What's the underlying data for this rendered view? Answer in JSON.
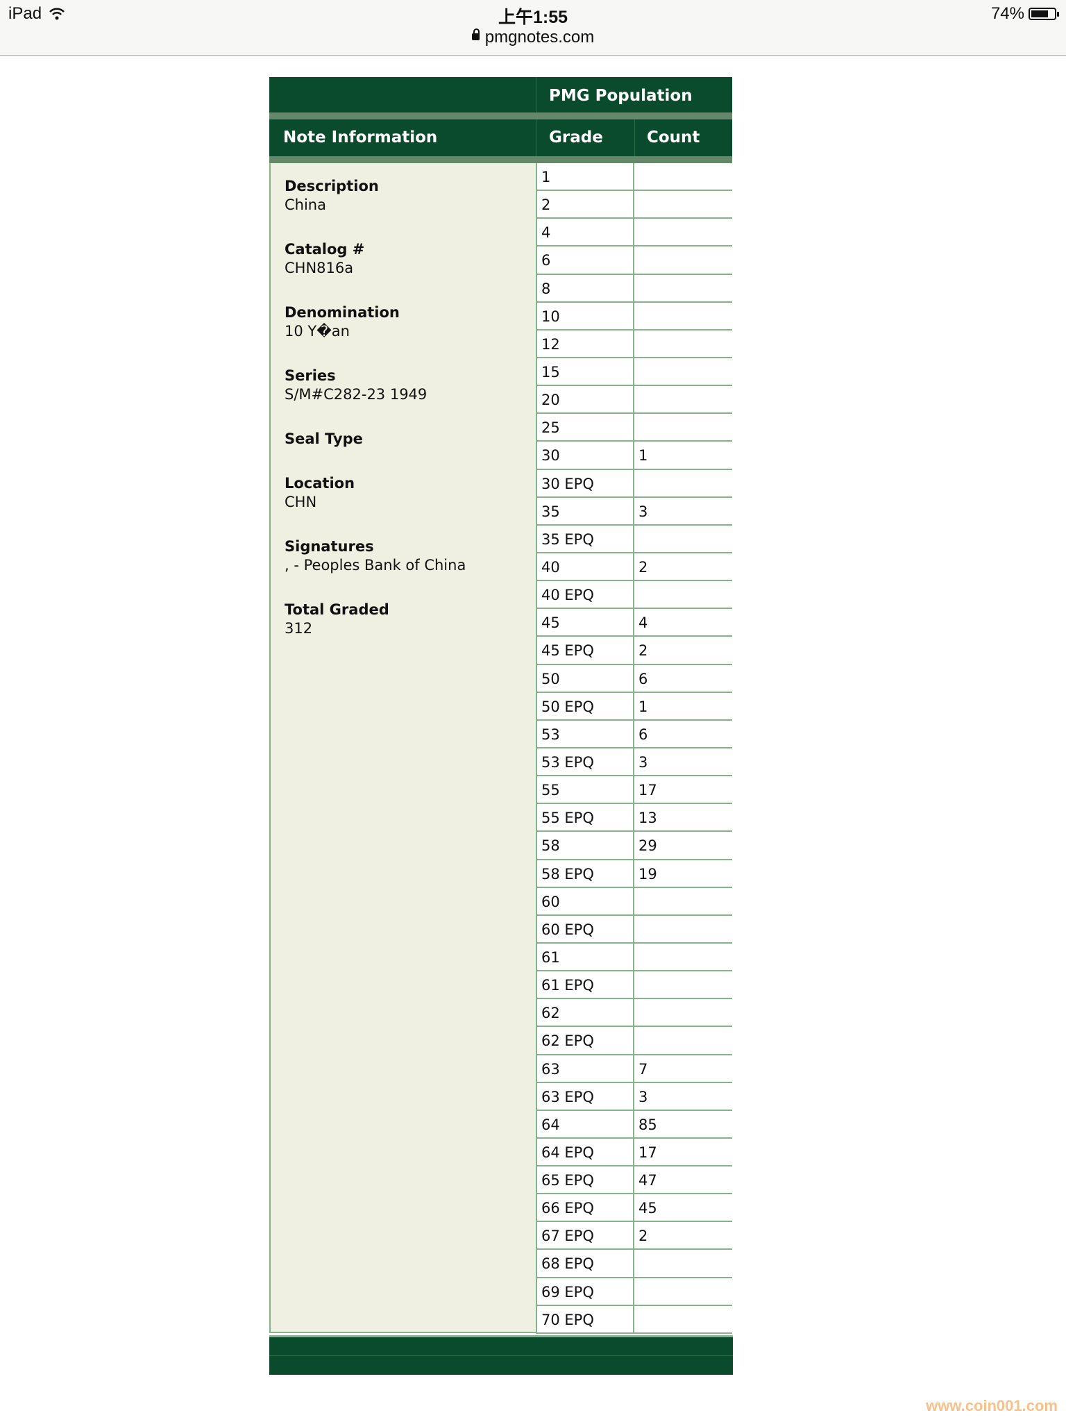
{
  "status_bar": {
    "device": "iPad",
    "time": "上午1:55",
    "url": "pmgnotes.com",
    "battery": "74%",
    "battery_level": 0.74
  },
  "table": {
    "population_header": "PMG Population",
    "note_info_header": "Note Information",
    "grade_header": "Grade",
    "count_header": "Count",
    "info": [
      {
        "label": "Description",
        "value": "China"
      },
      {
        "label": "Catalog #",
        "value": "CHN816a"
      },
      {
        "label": "Denomination",
        "value": "10 Y�an"
      },
      {
        "label": "Series",
        "value": "S/M#C282-23 1949"
      },
      {
        "label": "Seal Type",
        "value": ""
      },
      {
        "label": "Location",
        "value": "CHN"
      },
      {
        "label": "Signatures",
        "value": ", - Peoples Bank of China"
      },
      {
        "label": "Total Graded",
        "value": "312"
      }
    ],
    "rows": [
      {
        "grade": "1",
        "count": ""
      },
      {
        "grade": "2",
        "count": ""
      },
      {
        "grade": "4",
        "count": ""
      },
      {
        "grade": "6",
        "count": ""
      },
      {
        "grade": "8",
        "count": ""
      },
      {
        "grade": "10",
        "count": ""
      },
      {
        "grade": "12",
        "count": ""
      },
      {
        "grade": "15",
        "count": ""
      },
      {
        "grade": "20",
        "count": ""
      },
      {
        "grade": "25",
        "count": ""
      },
      {
        "grade": "30",
        "count": "1"
      },
      {
        "grade": "30 EPQ",
        "count": ""
      },
      {
        "grade": "35",
        "count": "3"
      },
      {
        "grade": "35 EPQ",
        "count": ""
      },
      {
        "grade": "40",
        "count": "2"
      },
      {
        "grade": "40 EPQ",
        "count": ""
      },
      {
        "grade": "45",
        "count": "4"
      },
      {
        "grade": "45 EPQ",
        "count": "2"
      },
      {
        "grade": "50",
        "count": "6"
      },
      {
        "grade": "50 EPQ",
        "count": "1"
      },
      {
        "grade": "53",
        "count": "6"
      },
      {
        "grade": "53 EPQ",
        "count": "3"
      },
      {
        "grade": "55",
        "count": "17"
      },
      {
        "grade": "55 EPQ",
        "count": "13"
      },
      {
        "grade": "58",
        "count": "29"
      },
      {
        "grade": "58 EPQ",
        "count": "19"
      },
      {
        "grade": "60",
        "count": ""
      },
      {
        "grade": "60 EPQ",
        "count": ""
      },
      {
        "grade": "61",
        "count": ""
      },
      {
        "grade": "61 EPQ",
        "count": ""
      },
      {
        "grade": "62",
        "count": ""
      },
      {
        "grade": "62 EPQ",
        "count": ""
      },
      {
        "grade": "63",
        "count": "7"
      },
      {
        "grade": "63 EPQ",
        "count": "3"
      },
      {
        "grade": "64",
        "count": "85"
      },
      {
        "grade": "64 EPQ",
        "count": "17"
      },
      {
        "grade": "65 EPQ",
        "count": "47"
      },
      {
        "grade": "66 EPQ",
        "count": "45"
      },
      {
        "grade": "67 EPQ",
        "count": "2"
      },
      {
        "grade": "68 EPQ",
        "count": ""
      },
      {
        "grade": "69 EPQ",
        "count": ""
      },
      {
        "grade": "70 EPQ",
        "count": ""
      }
    ]
  },
  "watermark": "www.coin001.com",
  "colors": {
    "header_green": "#094b2c",
    "stripe": "#66876a",
    "info_bg": "#f0f0e2",
    "grid": "#86b48a"
  }
}
